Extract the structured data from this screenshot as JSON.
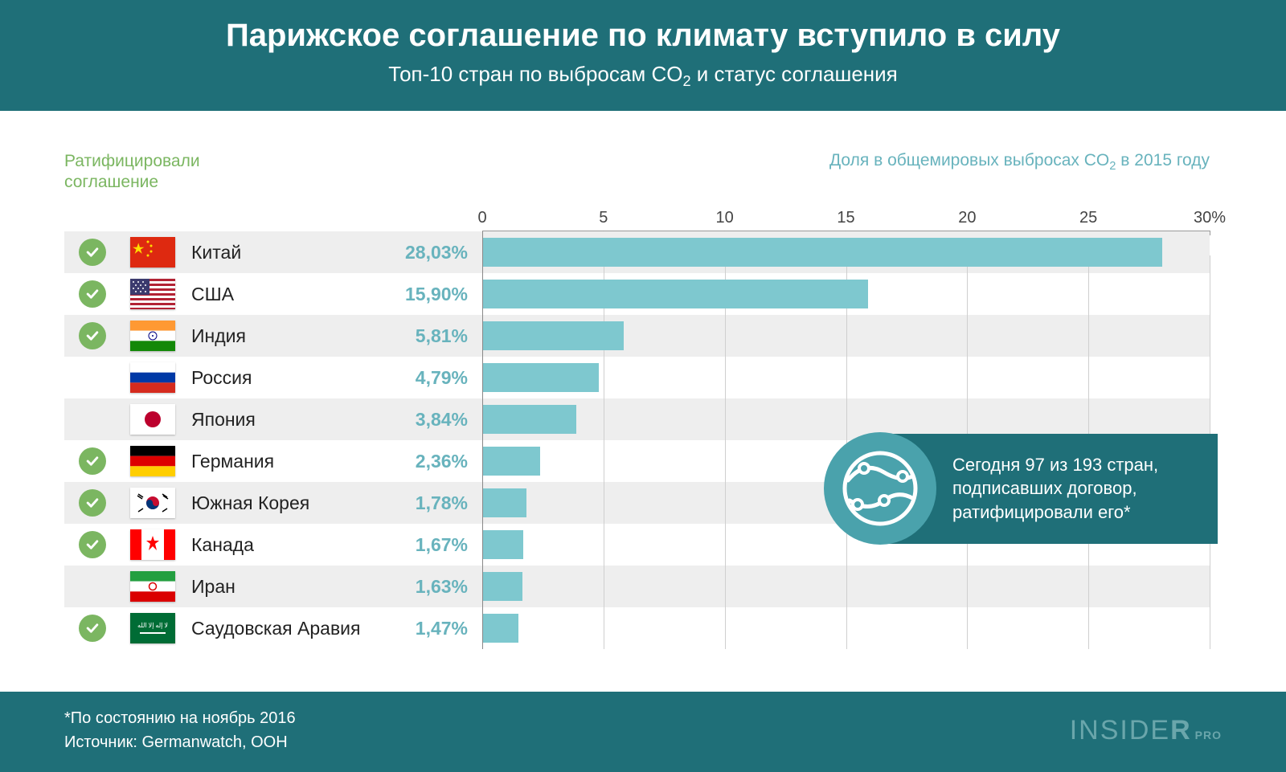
{
  "header": {
    "title": "Парижское соглашение по климату вступило в силу",
    "subtitle_pre": "Топ-10 стран по выбросам CO",
    "subtitle_sub": "2",
    "subtitle_post": " и статус соглашения"
  },
  "labels": {
    "ratified_line1": "Ратифицировали",
    "ratified_line2": "соглашение",
    "share_pre": "Доля в общемировых выбросах CO",
    "share_sub": "2",
    "share_post": " в 2015 году"
  },
  "chart": {
    "type": "bar",
    "x_max": 30,
    "ticks": [
      {
        "pos": 0,
        "label": "0"
      },
      {
        "pos": 16.67,
        "label": "5"
      },
      {
        "pos": 33.33,
        "label": "10"
      },
      {
        "pos": 50.0,
        "label": "15"
      },
      {
        "pos": 66.67,
        "label": "20"
      },
      {
        "pos": 83.33,
        "label": "25"
      },
      {
        "pos": 100.0,
        "label": "30%"
      }
    ],
    "bar_color": "#7ec8cf",
    "grid_color": "#cfcfcf",
    "value_color": "#68b3bd",
    "check_color": "#7bb661",
    "rows": [
      {
        "country": "Китай",
        "value": 28.03,
        "display": "28,03%",
        "ratified": true,
        "flag": "cn",
        "alt": true
      },
      {
        "country": "США",
        "value": 15.9,
        "display": "15,90%",
        "ratified": true,
        "flag": "us",
        "alt": false
      },
      {
        "country": "Индия",
        "value": 5.81,
        "display": "5,81%",
        "ratified": true,
        "flag": "in",
        "alt": true
      },
      {
        "country": "Россия",
        "value": 4.79,
        "display": "4,79%",
        "ratified": false,
        "flag": "ru",
        "alt": false
      },
      {
        "country": "Япония",
        "value": 3.84,
        "display": "3,84%",
        "ratified": false,
        "flag": "jp",
        "alt": true
      },
      {
        "country": "Германия",
        "value": 2.36,
        "display": "2,36%",
        "ratified": true,
        "flag": "de",
        "alt": false
      },
      {
        "country": "Южная Корея",
        "value": 1.78,
        "display": "1,78%",
        "ratified": true,
        "flag": "kr",
        "alt": true
      },
      {
        "country": "Канада",
        "value": 1.67,
        "display": "1,67%",
        "ratified": true,
        "flag": "ca",
        "alt": false
      },
      {
        "country": "Иран",
        "value": 1.63,
        "display": "1,63%",
        "ratified": false,
        "flag": "ir",
        "alt": true
      },
      {
        "country": "Саудовская Аравия",
        "value": 1.47,
        "display": "1,47%",
        "ratified": true,
        "flag": "sa",
        "alt": false
      }
    ]
  },
  "callout": {
    "line1": "Сегодня 97 из 193 стран,",
    "line2": "подписавших договор,",
    "line3": "ратифицировали его*"
  },
  "footer": {
    "note": "*По состоянию на ноябрь 2016",
    "source": "Источник: Germanwatch, ООН",
    "brand_light": "INSIDE",
    "brand_bold": "R",
    "brand_pro": "PRO"
  },
  "colors": {
    "header_bg": "#1f6f78",
    "callout_icon_bg": "#4aa2ac"
  }
}
